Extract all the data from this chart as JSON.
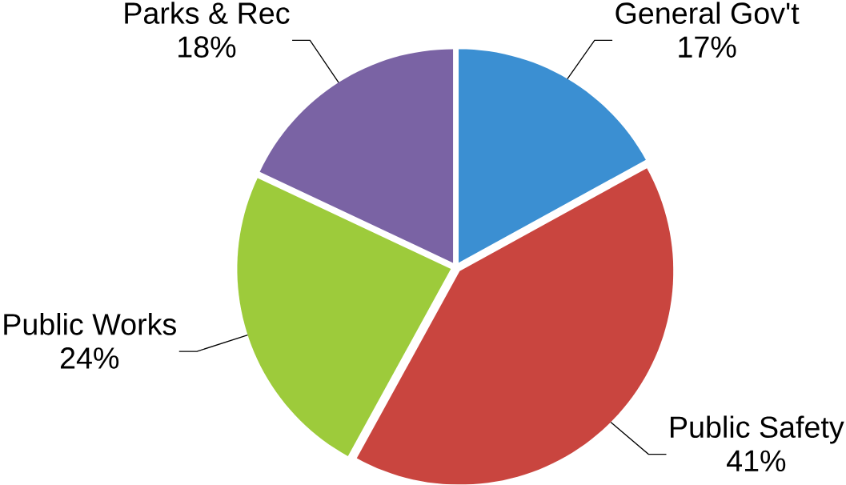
{
  "chart_data": {
    "type": "pie",
    "categories": [
      "General Gov't",
      "Public Safety",
      "Public Works",
      "Parks & Rec"
    ],
    "values": [
      17,
      41,
      24,
      18
    ],
    "value_labels": [
      "17%",
      "41%",
      "24%",
      "18%"
    ],
    "colors": [
      "#3b8fd2",
      "#c9453f",
      "#9dcb3b",
      "#7a63a4"
    ]
  }
}
